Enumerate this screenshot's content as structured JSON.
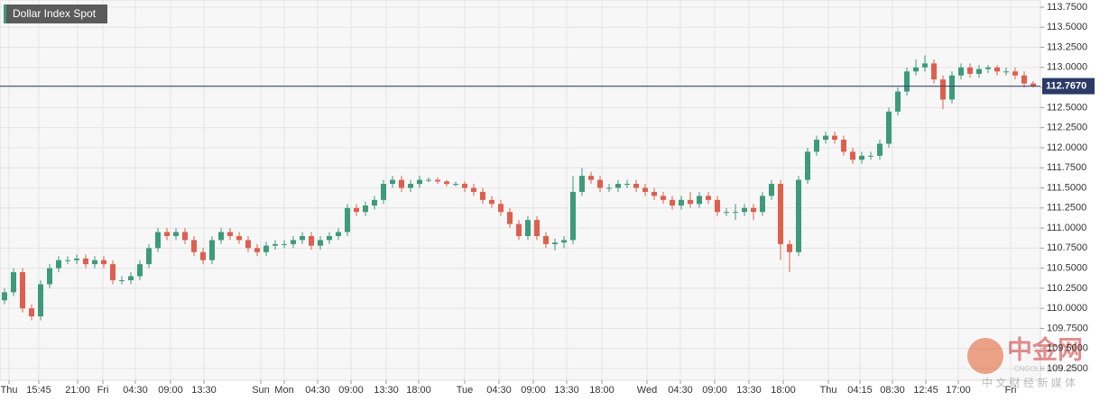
{
  "chart_data": {
    "type": "candlestick",
    "title": "Dollar Index Spot",
    "up_color": "#3d9a7a",
    "down_color": "#de5f4e",
    "grid": true,
    "xlim": [
      0,
      115
    ],
    "xticks": [
      {
        "value": 1.0,
        "label": "Thu"
      },
      {
        "value": 4.3,
        "label": "15:45"
      },
      {
        "value": 8.6,
        "label": "21:00"
      },
      {
        "value": 11.4,
        "label": "Fri"
      },
      {
        "value": 15.0,
        "label": "04:30"
      },
      {
        "value": 18.9,
        "label": "09:00"
      },
      {
        "value": 22.6,
        "label": "13:30"
      },
      {
        "value": 28.9,
        "label": "Sun"
      },
      {
        "value": 31.5,
        "label": "Mon"
      },
      {
        "value": 35.2,
        "label": "04:30"
      },
      {
        "value": 38.9,
        "label": "09:00"
      },
      {
        "value": 42.8,
        "label": "13:30"
      },
      {
        "value": 46.4,
        "label": "18:00"
      },
      {
        "value": 51.5,
        "label": "Tue"
      },
      {
        "value": 55.3,
        "label": "04:30"
      },
      {
        "value": 59.1,
        "label": "09:00"
      },
      {
        "value": 62.8,
        "label": "13:30"
      },
      {
        "value": 66.7,
        "label": "18:00"
      },
      {
        "value": 71.7,
        "label": "Wed"
      },
      {
        "value": 75.4,
        "label": "04:30"
      },
      {
        "value": 79.2,
        "label": "09:00"
      },
      {
        "value": 83.0,
        "label": "13:30"
      },
      {
        "value": 86.8,
        "label": "18:00"
      },
      {
        "value": 91.8,
        "label": "Thu"
      },
      {
        "value": 95.3,
        "label": "04:15"
      },
      {
        "value": 98.9,
        "label": "08:30"
      },
      {
        "value": 102.6,
        "label": "12:45"
      },
      {
        "value": 106.2,
        "label": "17:00"
      },
      {
        "value": 112.0,
        "label": "Fri"
      }
    ],
    "ylim": [
      109.25,
      113.75
    ],
    "yticks": [
      {
        "value": 109.25,
        "label": "109.2500"
      },
      {
        "value": 109.5,
        "label": "109.5000"
      },
      {
        "value": 109.75,
        "label": "109.7500"
      },
      {
        "value": 110.0,
        "label": "110.0000"
      },
      {
        "value": 110.25,
        "label": "110.2500"
      },
      {
        "value": 110.5,
        "label": "110.5000"
      },
      {
        "value": 110.75,
        "label": "110.7500"
      },
      {
        "value": 111.0,
        "label": "111.0000"
      },
      {
        "value": 111.25,
        "label": "111.2500"
      },
      {
        "value": 111.5,
        "label": "111.5000"
      },
      {
        "value": 111.75,
        "label": "111.7500"
      },
      {
        "value": 112.0,
        "label": "112.0000"
      },
      {
        "value": 112.25,
        "label": "112.2500"
      },
      {
        "value": 112.5,
        "label": "112.5000"
      },
      {
        "value": 112.75,
        "label": "112.7500"
      },
      {
        "value": 113.0,
        "label": "113.0000"
      },
      {
        "value": 113.25,
        "label": "113.2500"
      },
      {
        "value": 113.5,
        "label": "113.5000"
      },
      {
        "value": 113.75,
        "label": "113.7500"
      }
    ],
    "last_price": {
      "value": 112.767,
      "label": "112.7670"
    },
    "open": [
      110.1,
      110.2,
      110.45,
      110.0,
      109.9,
      110.3,
      110.5,
      110.6,
      110.6,
      110.62,
      110.55,
      110.6,
      110.55,
      110.35,
      110.35,
      110.4,
      110.55,
      110.75,
      110.95,
      110.9,
      110.95,
      110.85,
      110.7,
      110.6,
      110.85,
      110.95,
      110.9,
      110.85,
      110.75,
      110.7,
      110.78,
      110.8,
      110.8,
      110.85,
      110.9,
      110.78,
      110.85,
      110.9,
      110.95,
      111.25,
      111.2,
      111.28,
      111.35,
      111.55,
      111.6,
      111.5,
      111.55,
      111.6,
      111.6,
      111.58,
      111.55,
      111.55,
      111.5,
      111.45,
      111.35,
      111.3,
      111.2,
      111.05,
      110.9,
      111.1,
      110.9,
      110.8,
      110.82,
      110.85,
      111.45,
      111.65,
      111.6,
      111.5,
      111.5,
      111.55,
      111.55,
      111.5,
      111.45,
      111.4,
      111.35,
      111.28,
      111.35,
      111.3,
      111.4,
      111.35,
      111.2,
      111.2,
      111.2,
      111.25,
      111.2,
      111.4,
      111.55,
      110.8,
      110.7,
      111.6,
      111.95,
      112.1,
      112.15,
      112.1,
      111.95,
      111.85,
      111.9,
      111.9,
      112.05,
      112.45,
      112.7,
      112.95,
      113.0,
      113.05,
      112.85,
      112.6,
      112.9,
      113.0,
      112.92,
      112.98,
      113.0,
      112.95,
      112.95,
      112.9,
      112.8
    ],
    "high": [
      110.25,
      110.5,
      110.5,
      110.05,
      110.35,
      110.55,
      110.65,
      110.65,
      110.67,
      110.67,
      110.65,
      110.65,
      110.6,
      110.4,
      110.45,
      110.6,
      110.8,
      111.0,
      111.0,
      111.0,
      111.0,
      110.9,
      110.75,
      110.9,
      111.0,
      111.0,
      110.95,
      110.9,
      110.8,
      110.83,
      110.85,
      110.85,
      110.9,
      110.95,
      110.95,
      110.9,
      110.95,
      111.0,
      111.3,
      111.3,
      111.33,
      111.4,
      111.6,
      111.65,
      111.65,
      111.6,
      111.65,
      111.63,
      111.63,
      111.6,
      111.58,
      111.58,
      111.55,
      111.5,
      111.4,
      111.35,
      111.25,
      111.1,
      111.15,
      111.15,
      110.95,
      110.87,
      110.9,
      111.65,
      111.75,
      111.7,
      111.65,
      111.55,
      111.6,
      111.6,
      111.6,
      111.55,
      111.5,
      111.45,
      111.4,
      111.4,
      111.45,
      111.45,
      111.45,
      111.4,
      111.25,
      111.3,
      111.3,
      111.3,
      111.45,
      111.6,
      111.6,
      110.85,
      111.65,
      112.0,
      112.15,
      112.2,
      112.2,
      112.15,
      112.0,
      111.95,
      111.95,
      112.1,
      112.5,
      112.75,
      113.0,
      113.1,
      113.15,
      113.1,
      112.9,
      112.95,
      113.05,
      113.05,
      113.03,
      113.03,
      113.03,
      113.0,
      113.0,
      112.95,
      112.83
    ],
    "low": [
      110.05,
      110.15,
      109.95,
      109.85,
      109.85,
      110.25,
      110.45,
      110.55,
      110.55,
      110.5,
      110.5,
      110.5,
      110.3,
      110.3,
      110.3,
      110.35,
      110.5,
      110.7,
      110.85,
      110.85,
      110.8,
      110.65,
      110.55,
      110.55,
      110.8,
      110.85,
      110.8,
      110.7,
      110.65,
      110.65,
      110.73,
      110.75,
      110.75,
      110.8,
      110.73,
      110.73,
      110.8,
      110.85,
      110.9,
      111.15,
      111.15,
      111.23,
      111.3,
      111.5,
      111.45,
      111.45,
      111.5,
      111.57,
      111.55,
      111.52,
      111.52,
      111.45,
      111.4,
      111.3,
      111.25,
      111.15,
      111.0,
      110.85,
      110.85,
      110.85,
      110.75,
      110.72,
      110.75,
      110.8,
      111.4,
      111.55,
      111.45,
      111.45,
      111.45,
      111.5,
      111.45,
      111.4,
      111.35,
      111.3,
      111.23,
      111.23,
      111.25,
      111.25,
      111.3,
      111.15,
      111.15,
      111.1,
      111.15,
      111.1,
      111.15,
      111.35,
      110.6,
      110.45,
      110.65,
      111.55,
      111.9,
      112.05,
      112.05,
      111.9,
      111.8,
      111.8,
      111.85,
      111.85,
      112.0,
      112.4,
      112.65,
      112.9,
      112.95,
      112.8,
      112.48,
      112.55,
      112.85,
      112.87,
      112.87,
      112.93,
      112.9,
      112.9,
      112.85,
      112.75,
      112.75
    ],
    "close": [
      110.2,
      110.45,
      110.0,
      109.9,
      110.3,
      110.5,
      110.6,
      110.6,
      110.62,
      110.55,
      110.6,
      110.55,
      110.35,
      110.35,
      110.4,
      110.55,
      110.75,
      110.95,
      110.9,
      110.95,
      110.85,
      110.7,
      110.6,
      110.85,
      110.95,
      110.9,
      110.85,
      110.75,
      110.7,
      110.78,
      110.8,
      110.8,
      110.85,
      110.9,
      110.78,
      110.85,
      110.9,
      110.95,
      111.25,
      111.2,
      111.28,
      111.35,
      111.55,
      111.6,
      111.5,
      111.55,
      111.6,
      111.6,
      111.58,
      111.55,
      111.55,
      111.5,
      111.45,
      111.35,
      111.3,
      111.2,
      111.05,
      110.9,
      111.1,
      110.9,
      110.8,
      110.82,
      110.85,
      111.45,
      111.65,
      111.6,
      111.5,
      111.5,
      111.55,
      111.55,
      111.5,
      111.45,
      111.4,
      111.35,
      111.28,
      111.35,
      111.3,
      111.4,
      111.35,
      111.2,
      111.2,
      111.2,
      111.25,
      111.2,
      111.4,
      111.55,
      110.8,
      110.7,
      111.6,
      111.95,
      112.1,
      112.15,
      112.1,
      111.95,
      111.85,
      111.9,
      111.9,
      112.05,
      112.45,
      112.7,
      112.95,
      113.0,
      113.05,
      112.85,
      112.6,
      112.9,
      113.0,
      112.92,
      112.98,
      113.0,
      112.95,
      112.95,
      112.9,
      112.8,
      112.767
    ]
  },
  "watermark": {
    "logo": "中金网",
    "site": "CNGOLD.ORG.CN",
    "tagline": "中 文 财 经 新 媒 体"
  }
}
